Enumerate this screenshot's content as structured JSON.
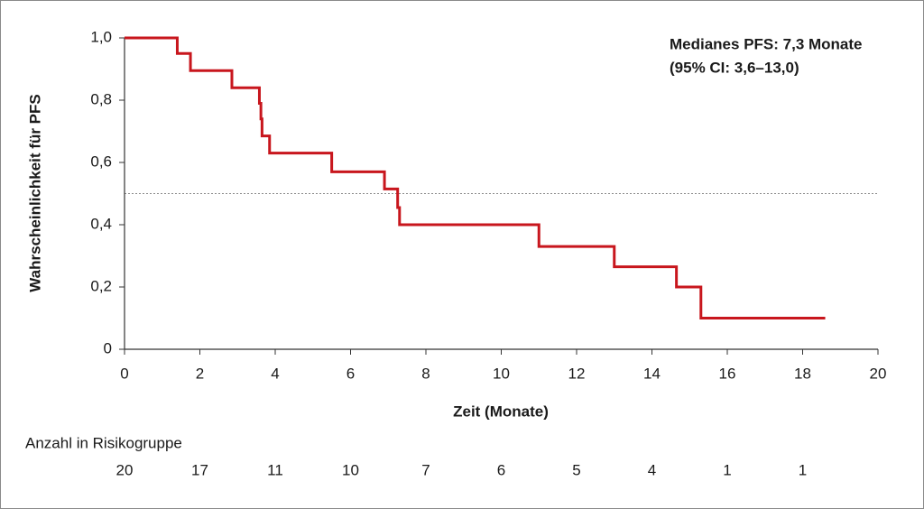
{
  "chart_data": {
    "type": "kaplan-meier",
    "xlabel": "Zeit (Monate)",
    "ylabel": "Wahrscheinlichkeit für PFS",
    "annotation": [
      "Medianes PFS: 7,3 Monate",
      "(95% CI: 3,6–13,0)"
    ],
    "x": [
      0,
      1.4,
      1.75,
      2.85,
      3.58,
      3.62,
      3.65,
      3.85,
      5.5,
      6.9,
      7.25,
      7.3,
      11.0,
      13.0,
      14.65,
      15.3,
      18.6
    ],
    "values": [
      1.0,
      0.95,
      0.895,
      0.84,
      0.79,
      0.74,
      0.685,
      0.63,
      0.57,
      0.515,
      0.455,
      0.4,
      0.33,
      0.265,
      0.2,
      0.1,
      0.1
    ],
    "color": "#c8161d",
    "reference_line": 0.5,
    "xlim": [
      0,
      20
    ],
    "xticks": [
      0,
      2,
      4,
      6,
      8,
      10,
      12,
      14,
      16,
      18,
      20
    ],
    "ylim": [
      0,
      1
    ],
    "yticks": [
      0,
      {
        "value": 0.2,
        "label": "0,2"
      },
      {
        "value": 0.4,
        "label": "0,4"
      },
      {
        "value": 0.6,
        "label": "0,6"
      },
      {
        "value": 0.8,
        "label": "0,8"
      },
      {
        "value": 1.0,
        "label": "1,0"
      }
    ],
    "at_risk": {
      "title": "Anzahl in Risikogruppe",
      "values": [
        20,
        17,
        11,
        10,
        7,
        6,
        5,
        4,
        1,
        1
      ]
    }
  }
}
